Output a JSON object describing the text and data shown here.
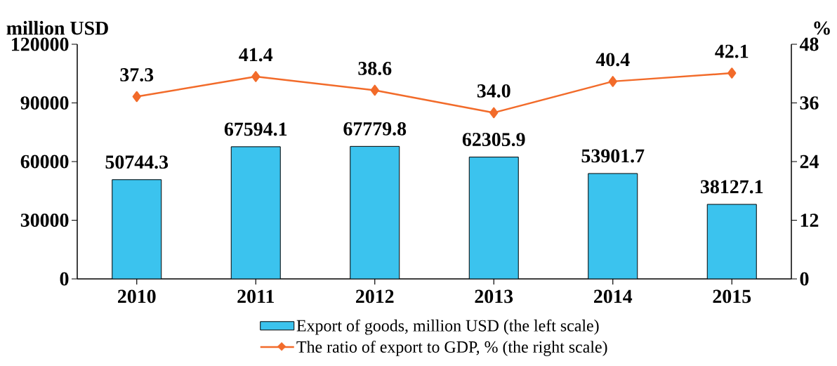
{
  "chart_data": {
    "type": "bar",
    "categories": [
      "2010",
      "2011",
      "2012",
      "2013",
      "2014",
      "2015"
    ],
    "series": [
      {
        "name": "Export of goods, million USD (the left scale)",
        "color": "#3bc3ee",
        "values": [
          50744.3,
          67594.1,
          67779.8,
          62305.9,
          53901.7,
          38127.1
        ],
        "value_labels": [
          "50744.3",
          "67594.1",
          "67779.8",
          "62305.9",
          "53901.7",
          "38127.1"
        ]
      },
      {
        "name": "The ratio of export to GDP, % (the right scale)",
        "type": "line",
        "axis": "y2",
        "color": "#f26b2a",
        "marker": "diamond",
        "values": [
          37.3,
          41.4,
          38.6,
          34.0,
          40.4,
          42.1
        ],
        "value_labels": [
          "37.3",
          "41.4",
          "38.6",
          "34.0",
          "40.4",
          "42.1"
        ]
      }
    ],
    "ylabel": "million USD",
    "y2label": "%",
    "ylim": [
      0,
      120000
    ],
    "yticks": [
      0,
      30000,
      60000,
      90000,
      120000
    ],
    "y2lim": [
      0,
      48
    ],
    "y2ticks": [
      0,
      12,
      24,
      36,
      48
    ],
    "legend": "bottom"
  }
}
